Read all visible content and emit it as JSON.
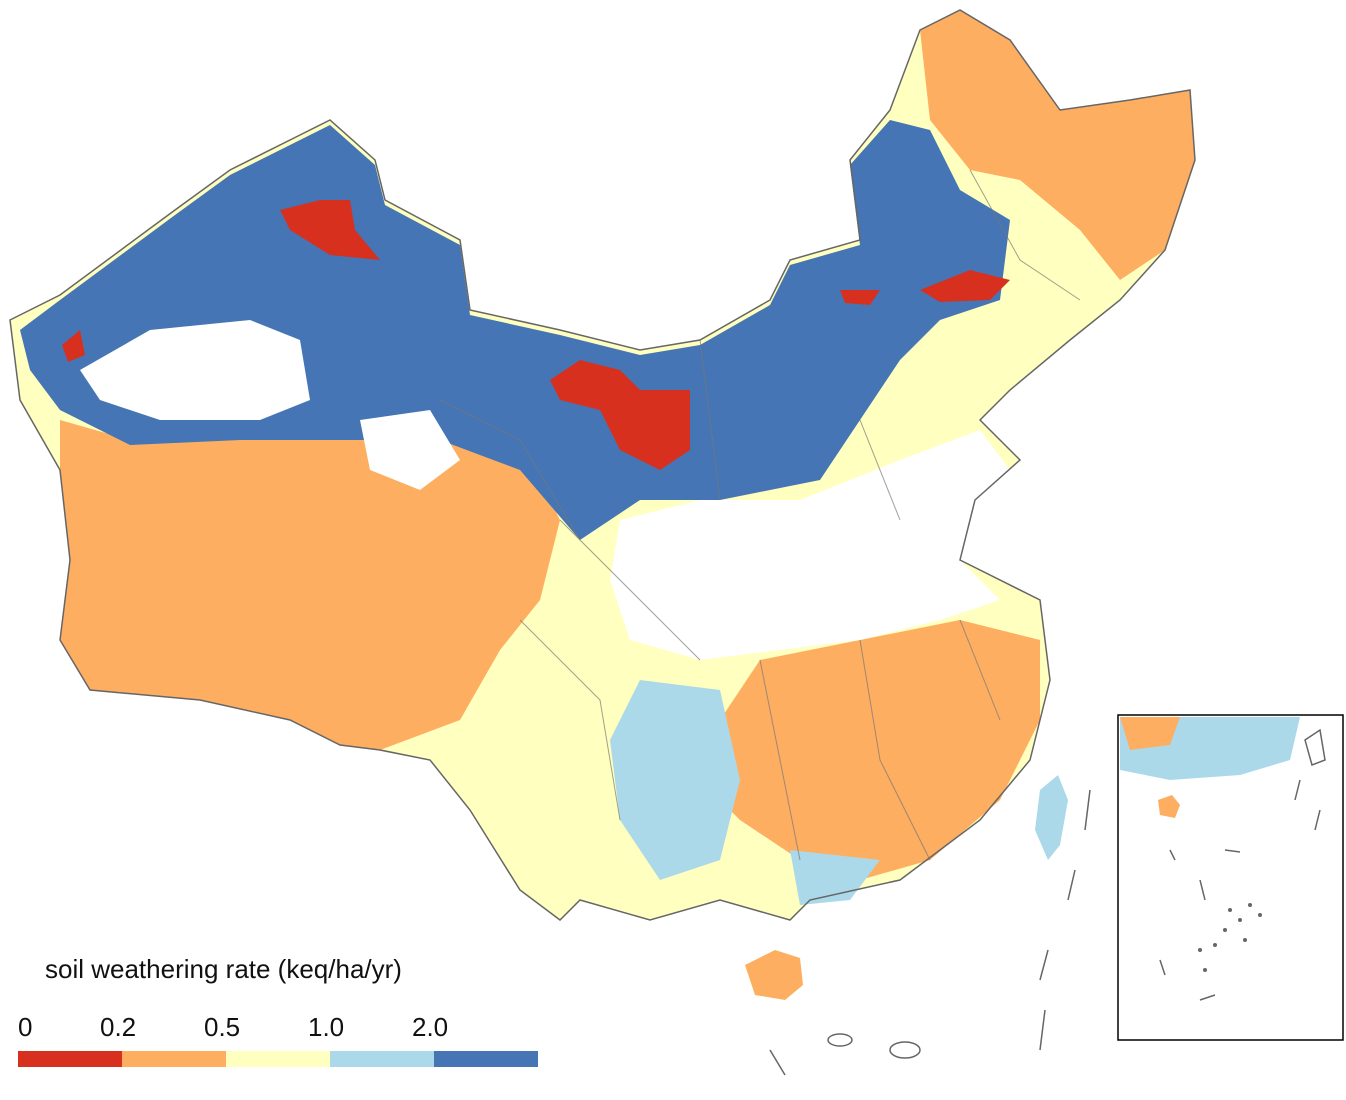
{
  "legend": {
    "title": "soil weathering rate (keq/ha/yr)",
    "ticks": [
      0,
      0.2,
      0.5,
      {
        "value": 1,
        "label": "1.0"
      },
      {
        "value": 2,
        "label": "2.0"
      }
    ],
    "colors": [
      "#d7301f",
      "#fdae61",
      "#ffffbf",
      "#abd9e9",
      "#4575b4"
    ]
  }
}
